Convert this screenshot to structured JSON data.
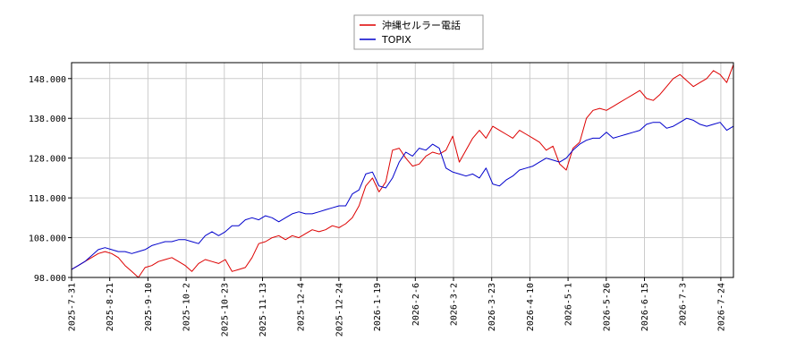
{
  "chart_data": {
    "type": "line",
    "title": "",
    "xlabel": "",
    "ylabel": "",
    "ylim": [
      98,
      152
    ],
    "yticks": [
      98,
      108,
      118,
      128,
      138,
      148
    ],
    "ytick_labels": [
      "98.000",
      "108.000",
      "118.000",
      "128.000",
      "138.000",
      "148.000"
    ],
    "xticks": [
      "2025-7-31",
      "2025-8-21",
      "2025-9-10",
      "2025-10-2",
      "2025-10-23",
      "2025-11-13",
      "2025-12-4",
      "2025-12-24",
      "2026-1-19",
      "2026-2-6",
      "2026-3-2",
      "2026-3-23",
      "2026-4-10",
      "2026-5-1",
      "2026-5-26",
      "2026-6-15",
      "2026-7-3",
      "2026-7-24"
    ],
    "grid": true,
    "legend_position": "top-center",
    "series": [
      {
        "name": "沖縄セルラー電話",
        "color": "#dd0000",
        "values": [
          100,
          101,
          102,
          103,
          104,
          104.5,
          104,
          103,
          101,
          99.5,
          98,
          100.5,
          101,
          102,
          102.5,
          103,
          102,
          101,
          99.5,
          101.5,
          102.5,
          102,
          101.5,
          102.5,
          99.5,
          100,
          100.5,
          103,
          106.5,
          107,
          108,
          108.5,
          107.5,
          108.5,
          108,
          109,
          110,
          109.5,
          110,
          111,
          110.5,
          111.5,
          113,
          116,
          121,
          123,
          119.5,
          122,
          130,
          130.5,
          128,
          126,
          126.5,
          128.5,
          129.5,
          129,
          130,
          133.5,
          127,
          130,
          133,
          135,
          133,
          136,
          135,
          134,
          133,
          135,
          134,
          133,
          132,
          130,
          131,
          126.5,
          125,
          130.5,
          132,
          138,
          140,
          140.5,
          140,
          141,
          142,
          143,
          144,
          145,
          143,
          142.5,
          144,
          146,
          148,
          149,
          147.5,
          146,
          147,
          148,
          150,
          149,
          147,
          151.5
        ]
      },
      {
        "name": "TOPIX",
        "color": "#0000cc",
        "values": [
          100,
          101,
          102,
          103.5,
          105,
          105.5,
          105,
          104.5,
          104.5,
          104,
          104.5,
          105,
          106,
          106.5,
          107,
          107,
          107.5,
          107.5,
          107,
          106.5,
          108.5,
          109.5,
          108.5,
          109.5,
          111,
          111,
          112.5,
          113,
          112.5,
          113.5,
          113,
          112,
          113,
          114,
          114.5,
          114,
          114,
          114.5,
          115,
          115.5,
          116,
          116,
          119,
          120,
          124,
          124.5,
          121,
          120.5,
          123,
          127,
          129.5,
          128.5,
          130.5,
          130,
          131.5,
          130.5,
          125.5,
          124.5,
          124,
          123.5,
          124,
          123,
          125.5,
          121.5,
          121,
          122.5,
          123.5,
          125,
          125.5,
          126,
          127,
          128,
          127.5,
          127,
          128,
          130,
          131.5,
          132.5,
          133,
          133,
          134.5,
          133,
          133.5,
          134,
          134.5,
          135,
          136.5,
          137,
          137,
          135.5,
          136,
          137,
          138,
          137.5,
          136.5,
          136,
          136.5,
          137,
          135,
          136
        ]
      }
    ]
  }
}
